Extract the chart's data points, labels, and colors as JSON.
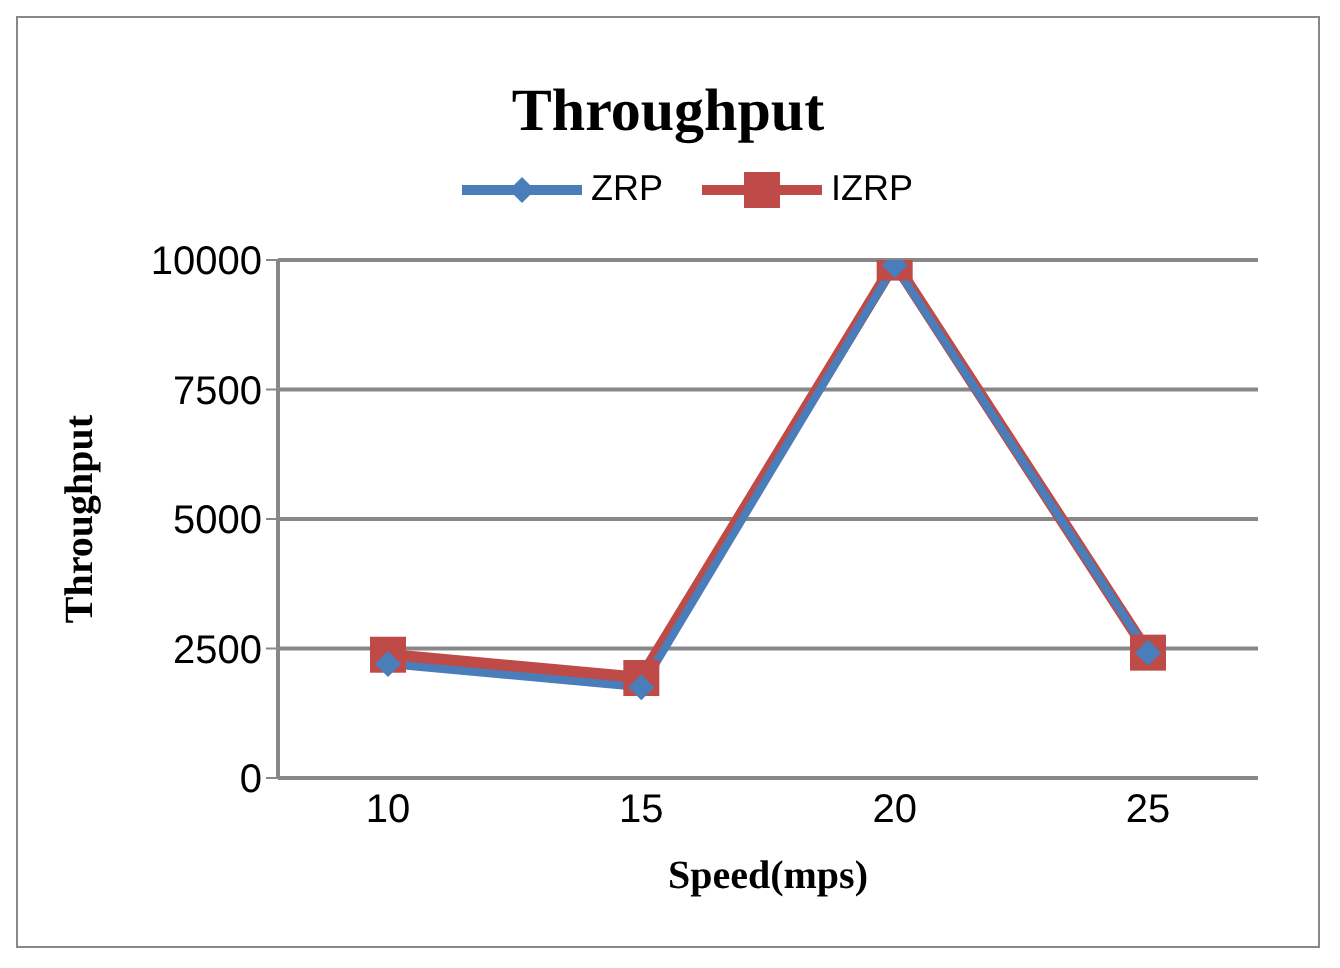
{
  "chart_data": {
    "type": "line",
    "title": "Throughput",
    "xlabel": "Speed(mps)",
    "ylabel": "Throughput",
    "categories": [
      "10",
      "15",
      "20",
      "25"
    ],
    "series": [
      {
        "name": "ZRP",
        "color": "#4a7ebb",
        "values": [
          2200,
          1750,
          9900,
          2420
        ],
        "marker": "diamond"
      },
      {
        "name": "IZRP",
        "color": "#be4b48",
        "values": [
          2380,
          1930,
          9950,
          2420
        ],
        "marker": "square"
      }
    ],
    "ylim": [
      0,
      10000
    ],
    "yticks": [
      0,
      2500,
      5000,
      7500,
      10000
    ],
    "grid": "y",
    "legend": "top",
    "line_style": "solid"
  }
}
